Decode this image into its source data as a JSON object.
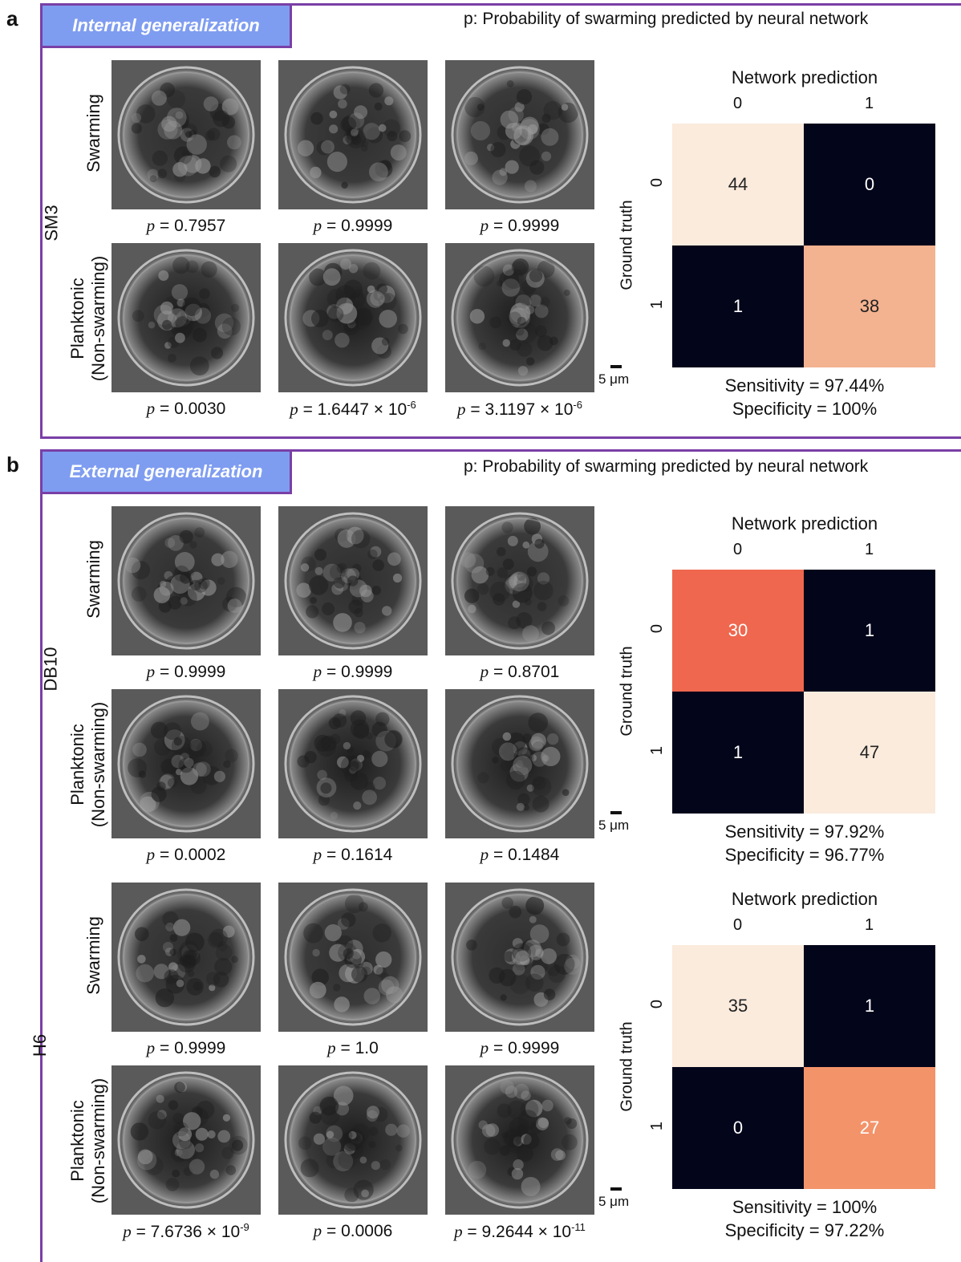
{
  "header_note": "p: Probability of swarming predicted by neural network",
  "row_labels": {
    "swarming": "Swarming",
    "planktonic_1": "Planktonic",
    "planktonic_2": "(Non-swarming)"
  },
  "scale_bar": "5 μm",
  "panels": [
    {
      "letter": "a",
      "tag": "Internal generalization",
      "strains": [
        {
          "name": "SM3",
          "swarming_p": [
            "p = 0.7957",
            "p = 0.9999",
            "p = 0.9999"
          ],
          "planktonic_p": [
            "p = 0.0030",
            "p = 1.6447 × 10-6",
            "p = 3.1197 × 10-6"
          ],
          "confusion": {
            "title": "Network prediction",
            "ylabel": "Ground truth",
            "cols": [
              "0",
              "1"
            ],
            "rows": [
              "0",
              "1"
            ],
            "cells": [
              [
                "44",
                "0"
              ],
              [
                "1",
                "38"
              ]
            ],
            "colors": [
              [
                "#faebdd",
                "#03051a"
              ],
              [
                "#03051a",
                "#f3b290"
              ]
            ],
            "text_colors": [
              [
                "#222222",
                "#ffffff"
              ],
              [
                "#ffffff",
                "#222222"
              ]
            ],
            "sensitivity": "Sensitivity = 97.44%",
            "specificity": "Specificity = 100%"
          }
        }
      ]
    },
    {
      "letter": "b",
      "tag": "External generalization",
      "strains": [
        {
          "name": "DB10",
          "swarming_p": [
            "p = 0.9999",
            "p = 0.9999",
            "p = 0.8701"
          ],
          "planktonic_p": [
            "p = 0.0002",
            "p = 0.1614",
            "p = 0.1484"
          ],
          "confusion": {
            "title": "Network prediction",
            "ylabel": "Ground truth",
            "cols": [
              "0",
              "1"
            ],
            "rows": [
              "0",
              "1"
            ],
            "cells": [
              [
                "30",
                "1"
              ],
              [
                "1",
                "47"
              ]
            ],
            "colors": [
              [
                "#ef674e",
                "#03051a"
              ],
              [
                "#03051a",
                "#faebdd"
              ]
            ],
            "text_colors": [
              [
                "#ffffff",
                "#ffffff"
              ],
              [
                "#ffffff",
                "#222222"
              ]
            ],
            "sensitivity": "Sensitivity = 97.92%",
            "specificity": "Specificity = 96.77%"
          }
        },
        {
          "name": "H6",
          "swarming_p": [
            "p = 0.9999",
            "p = 1.0",
            "p = 0.9999"
          ],
          "planktonic_p": [
            "p = 7.6736 × 10-9",
            "p = 0.0006",
            "p = 9.2644 × 10-11"
          ],
          "confusion": {
            "title": "Network prediction",
            "ylabel": "Ground truth",
            "cols": [
              "0",
              "1"
            ],
            "rows": [
              "0",
              "1"
            ],
            "cells": [
              [
                "35",
                "1"
              ],
              [
                "0",
                "27"
              ]
            ],
            "colors": [
              [
                "#faebdd",
                "#03051a"
              ],
              [
                "#03051a",
                "#f3936a"
              ]
            ],
            "text_colors": [
              [
                "#222222",
                "#ffffff"
              ],
              [
                "#ffffff",
                "#ffffff"
              ]
            ],
            "sensitivity": "Sensitivity = 100%",
            "specificity": "Specificity = 97.22%"
          }
        }
      ]
    }
  ]
}
